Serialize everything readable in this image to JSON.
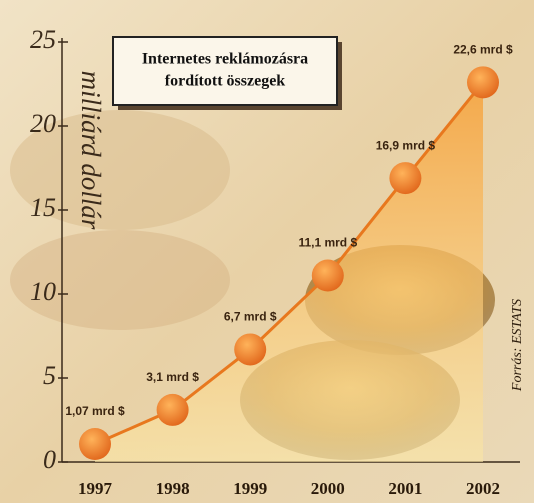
{
  "chart_data": {
    "type": "line",
    "title": [
      "Internetes reklámozásra",
      "fordított összegek"
    ],
    "y_label": "milliárd dollár",
    "source": "Forrás: ESTATS",
    "categories": [
      "1997",
      "1998",
      "1999",
      "2000",
      "2001",
      "2002"
    ],
    "values": [
      1.07,
      3.1,
      6.7,
      11.1,
      16.9,
      22.6
    ],
    "value_labels": [
      "1,07 mrd $",
      "3,1 mrd $",
      "6,7 mrd $",
      "11,1 mrd $",
      "16,9 mrd $",
      "22,6 mrd $"
    ],
    "color": "#e8781e",
    "ylim": [
      0,
      25
    ],
    "yticks": [
      0,
      5,
      10,
      15,
      20,
      25
    ]
  }
}
